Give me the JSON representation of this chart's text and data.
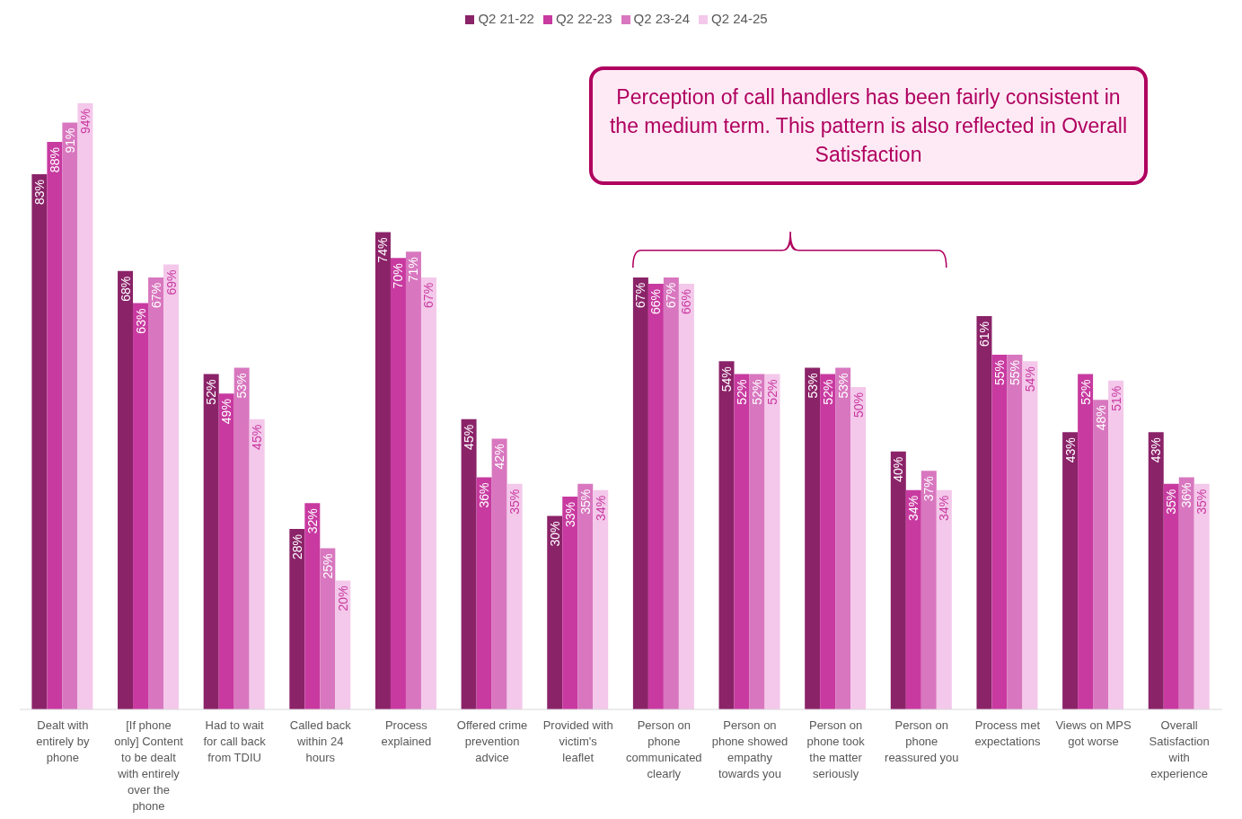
{
  "chart_data": {
    "type": "bar",
    "categories": [
      "Dealt with entirely by phone",
      "[If phone only] Content to be dealt with entirely over the phone",
      "Had to wait for call back from TDIU",
      "Called back within 24 hours",
      "Process explained",
      "Offered crime prevention advice",
      "Provided with victim's leaflet",
      "Person on phone communicated clearly",
      "Person on phone showed empathy towards you",
      "Person on phone took the matter seriously",
      "Person on phone reassured you",
      "Process met expectations",
      "Views on MPS got worse",
      "Overall Satisfaction with experience"
    ],
    "series": [
      {
        "name": "Q2 21-22",
        "color": "#8b2369",
        "values": [
          83,
          68,
          52,
          28,
          74,
          45,
          30,
          67,
          54,
          53,
          40,
          61,
          43,
          43
        ],
        "value_labels": [
          "83%",
          "68%",
          "52%",
          "28%",
          "74%",
          "45%",
          "30%",
          "67%",
          "54%",
          "53%",
          "40%",
          "61%",
          "43%",
          "43%"
        ]
      },
      {
        "name": "Q2 22-23",
        "color": "#c83aa0",
        "values": [
          88,
          63,
          49,
          32,
          70,
          36,
          33,
          66,
          52,
          52,
          34,
          55,
          52,
          35
        ],
        "value_labels": [
          "88%",
          "63%",
          "49%",
          "32%",
          "70%",
          "36%",
          "33%",
          "66%",
          "52%",
          "52%",
          "34%",
          "55%",
          "52%",
          "35%"
        ]
      },
      {
        "name": "Q2 23-24",
        "color": "#d877bf",
        "values": [
          91,
          67,
          53,
          25,
          71,
          42,
          35,
          67,
          52,
          53,
          37,
          55,
          48,
          36
        ],
        "value_labels": [
          "91%",
          "67%",
          "53%",
          "25%",
          "71%",
          "42%",
          "35%",
          "67%",
          "52%",
          "53%",
          "37%",
          "55%",
          "48%",
          "36%"
        ]
      },
      {
        "name": "Q2 24-25",
        "color": "#f4c8ea",
        "values": [
          94,
          69,
          45,
          20,
          67,
          35,
          34,
          66,
          52,
          50,
          34,
          54,
          51,
          35
        ],
        "value_labels": [
          "94%",
          "69%",
          "45%",
          "20%",
          "67%",
          "35%",
          "34%",
          "66%",
          "52%",
          "50%",
          "34%",
          "54%",
          "51%",
          "35%"
        ]
      }
    ],
    "annotations": [
      "Perception of call handlers has been fairly consistent in the medium term. This pattern is also reflected in Overall Satisfaction"
    ],
    "legend": "top",
    "grid": false
  }
}
